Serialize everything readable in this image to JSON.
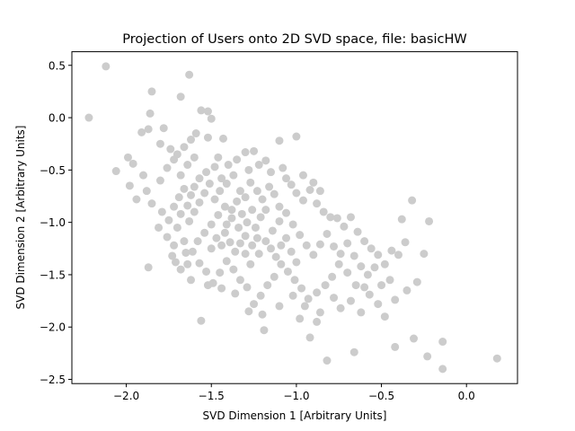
{
  "chart_data": {
    "type": "scatter",
    "title": "Projection of Users onto 2D SVD space, file: basicHW",
    "xlabel": "SVD Dimension 1 [Arbitrary Units]",
    "ylabel": "SVD Dimension 2 [Arbitrary Units]",
    "xlim": [
      -2.32,
      0.3
    ],
    "ylim": [
      -2.54,
      0.63
    ],
    "xticks": [
      -2.0,
      -1.5,
      -1.0,
      -0.5,
      0.0
    ],
    "xtick_labels": [
      "−2.0",
      "−1.5",
      "−1.0",
      "−0.5",
      "0.0"
    ],
    "yticks": [
      -2.5,
      -2.0,
      -1.5,
      -1.0,
      -0.5,
      0.0,
      0.5
    ],
    "ytick_labels": [
      "−2.5",
      "−2.0",
      "−1.5",
      "−1.0",
      "−0.5",
      "0.0",
      "0.5"
    ],
    "grid": false,
    "marker_color": "#cccccc",
    "series": [
      {
        "points": [
          [
            -2.22,
            0.0
          ],
          [
            -2.12,
            0.49
          ],
          [
            -1.63,
            0.41
          ],
          [
            -1.85,
            0.25
          ],
          [
            -1.68,
            0.2
          ],
          [
            -1.56,
            0.07
          ],
          [
            -1.52,
            0.06
          ],
          [
            -1.86,
            0.04
          ],
          [
            -1.5,
            -0.01
          ],
          [
            -1.87,
            -0.11
          ],
          [
            -1.91,
            -0.14
          ],
          [
            -1.78,
            -0.1
          ],
          [
            -1.59,
            -0.15
          ],
          [
            -1.52,
            -0.19
          ],
          [
            -1.43,
            -0.2
          ],
          [
            -1.62,
            -0.21
          ],
          [
            -1.0,
            -0.18
          ],
          [
            -1.1,
            -0.22
          ],
          [
            -1.25,
            -0.32
          ],
          [
            -1.3,
            -0.33
          ],
          [
            -1.18,
            -0.41
          ],
          [
            -1.96,
            -0.44
          ],
          [
            -1.99,
            -0.38
          ],
          [
            -2.06,
            -0.51
          ],
          [
            -1.9,
            -0.55
          ],
          [
            -1.98,
            -0.65
          ],
          [
            -1.88,
            -0.7
          ],
          [
            -1.94,
            -0.78
          ],
          [
            -1.85,
            -0.82
          ],
          [
            -1.79,
            -0.9
          ],
          [
            -1.75,
            -0.98
          ],
          [
            -1.81,
            -1.05
          ],
          [
            -1.76,
            -1.14
          ],
          [
            -1.72,
            -1.22
          ],
          [
            -1.73,
            -1.32
          ],
          [
            -1.87,
            -1.43
          ],
          [
            -1.62,
            -1.55
          ],
          [
            -1.56,
            -1.94
          ],
          [
            -1.71,
            -1.38
          ],
          [
            -1.65,
            -1.29
          ],
          [
            -1.66,
            -1.18
          ],
          [
            -1.7,
            -1.05
          ],
          [
            -1.68,
            -0.92
          ],
          [
            -1.64,
            -0.84
          ],
          [
            -1.62,
            -0.74
          ],
          [
            -1.6,
            -0.66
          ],
          [
            -1.57,
            -0.58
          ],
          [
            -1.53,
            -0.52
          ],
          [
            -1.48,
            -0.47
          ],
          [
            -1.44,
            -0.58
          ],
          [
            -1.41,
            -0.63
          ],
          [
            -1.37,
            -0.55
          ],
          [
            -1.33,
            -0.7
          ],
          [
            -1.3,
            -0.76
          ],
          [
            -1.27,
            -0.62
          ],
          [
            -1.23,
            -0.7
          ],
          [
            -1.2,
            -0.78
          ],
          [
            -1.16,
            -0.66
          ],
          [
            -1.13,
            -0.73
          ],
          [
            -1.1,
            -0.85
          ],
          [
            -1.06,
            -0.58
          ],
          [
            -1.03,
            -0.64
          ],
          [
            -1.0,
            -0.72
          ],
          [
            -0.96,
            -0.79
          ],
          [
            -0.92,
            -0.69
          ],
          [
            -0.88,
            -0.82
          ],
          [
            -0.84,
            -0.9
          ],
          [
            -0.8,
            -0.95
          ],
          [
            -0.76,
            -0.96
          ],
          [
            -0.72,
            -1.04
          ],
          [
            -0.68,
            -0.95
          ],
          [
            -0.64,
            -1.09
          ],
          [
            -0.6,
            -1.18
          ],
          [
            -0.56,
            -1.25
          ],
          [
            -0.52,
            -1.31
          ],
          [
            -0.48,
            -1.4
          ],
          [
            -0.44,
            -1.27
          ],
          [
            -0.4,
            -1.31
          ],
          [
            -0.36,
            -1.19
          ],
          [
            -0.32,
            -0.79
          ],
          [
            -0.38,
            -0.97
          ],
          [
            -0.22,
            -0.99
          ],
          [
            -0.25,
            -1.3
          ],
          [
            -0.29,
            -1.57
          ],
          [
            -0.35,
            -1.65
          ],
          [
            -0.42,
            -1.74
          ],
          [
            -0.45,
            -1.55
          ],
          [
            -0.48,
            -1.9
          ],
          [
            -0.42,
            -2.19
          ],
          [
            -0.31,
            -2.11
          ],
          [
            -0.14,
            -2.14
          ],
          [
            -0.23,
            -2.28
          ],
          [
            -0.14,
            -2.4
          ],
          [
            0.18,
            -2.3
          ],
          [
            -0.82,
            -2.32
          ],
          [
            -0.66,
            -2.24
          ],
          [
            -0.92,
            -2.1
          ],
          [
            -1.19,
            -2.03
          ],
          [
            -0.98,
            -1.92
          ],
          [
            -0.86,
            -1.86
          ],
          [
            -0.74,
            -1.82
          ],
          [
            -0.62,
            -1.86
          ],
          [
            -0.5,
            -1.6
          ],
          [
            -0.57,
            -1.69
          ],
          [
            -0.65,
            -1.6
          ],
          [
            -0.7,
            -1.48
          ],
          [
            -0.75,
            -1.4
          ],
          [
            -0.79,
            -1.52
          ],
          [
            -0.83,
            -1.6
          ],
          [
            -0.88,
            -1.67
          ],
          [
            -0.93,
            -1.73
          ],
          [
            -0.97,
            -1.63
          ],
          [
            -1.01,
            -1.55
          ],
          [
            -1.05,
            -1.47
          ],
          [
            -1.09,
            -1.4
          ],
          [
            -1.13,
            -1.52
          ],
          [
            -1.17,
            -1.6
          ],
          [
            -1.21,
            -1.7
          ],
          [
            -1.25,
            -1.78
          ],
          [
            -1.29,
            -1.62
          ],
          [
            -1.33,
            -1.55
          ],
          [
            -1.37,
            -1.45
          ],
          [
            -1.41,
            -1.37
          ],
          [
            -1.45,
            -1.48
          ],
          [
            -1.49,
            -1.58
          ],
          [
            -1.53,
            -1.47
          ],
          [
            -1.57,
            -1.39
          ],
          [
            -1.61,
            -1.28
          ],
          [
            -1.58,
            -1.18
          ],
          [
            -1.54,
            -1.1
          ],
          [
            -1.5,
            -1.02
          ],
          [
            -1.46,
            -0.93
          ],
          [
            -1.42,
            -0.85
          ],
          [
            -1.38,
            -0.96
          ],
          [
            -1.34,
            -1.05
          ],
          [
            -1.3,
            -1.13
          ],
          [
            -1.26,
            -1.22
          ],
          [
            -1.22,
            -1.3
          ],
          [
            -1.18,
            -1.18
          ],
          [
            -1.14,
            -1.08
          ],
          [
            -1.1,
            -0.99
          ],
          [
            -1.06,
            -0.91
          ],
          [
            -1.02,
            -1.02
          ],
          [
            -0.98,
            -1.12
          ],
          [
            -0.94,
            -1.22
          ],
          [
            -0.9,
            -1.31
          ],
          [
            -0.86,
            -1.21
          ],
          [
            -0.82,
            -1.11
          ],
          [
            -0.78,
            -1.23
          ],
          [
            -0.74,
            -1.3
          ],
          [
            -0.7,
            -1.2
          ],
          [
            -0.66,
            -1.32
          ],
          [
            -0.62,
            -1.42
          ],
          [
            -0.58,
            -1.5
          ],
          [
            -0.54,
            -1.43
          ],
          [
            -1.72,
            -0.85
          ],
          [
            -1.69,
            -0.76
          ],
          [
            -1.66,
            -0.68
          ],
          [
            -1.63,
            -0.99
          ],
          [
            -1.6,
            -0.9
          ],
          [
            -1.57,
            -0.81
          ],
          [
            -1.54,
            -0.72
          ],
          [
            -1.51,
            -0.63
          ],
          [
            -1.48,
            -0.78
          ],
          [
            -1.45,
            -0.7
          ],
          [
            -1.42,
            -1.1
          ],
          [
            -1.39,
            -1.19
          ],
          [
            -1.36,
            -1.28
          ],
          [
            -1.33,
            -1.2
          ],
          [
            -1.3,
            -1.3
          ],
          [
            -1.27,
            -1.4
          ],
          [
            -1.24,
            -1.05
          ],
          [
            -1.21,
            -0.95
          ],
          [
            -1.18,
            -0.88
          ],
          [
            -1.15,
            -1.25
          ],
          [
            -1.12,
            -1.33
          ],
          [
            -1.09,
            -1.22
          ],
          [
            -1.06,
            -1.15
          ],
          [
            -1.03,
            -1.28
          ],
          [
            -1.0,
            -1.38
          ],
          [
            -1.5,
            -1.25
          ],
          [
            -1.47,
            -1.15
          ],
          [
            -1.44,
            -1.22
          ],
          [
            -1.41,
            -1.02
          ],
          [
            -1.38,
            -0.88
          ],
          [
            -1.35,
            -0.8
          ],
          [
            -1.32,
            -0.92
          ],
          [
            -1.29,
            -1.0
          ],
          [
            -1.26,
            -0.88
          ],
          [
            -1.23,
            -1.15
          ],
          [
            -1.68,
            -1.45
          ],
          [
            -1.64,
            -1.4
          ],
          [
            -1.52,
            -1.6
          ],
          [
            -1.44,
            -1.63
          ],
          [
            -1.36,
            -1.68
          ],
          [
            -1.28,
            -1.85
          ],
          [
            -1.2,
            -1.88
          ],
          [
            -1.1,
            -1.8
          ],
          [
            -1.02,
            -1.7
          ],
          [
            -0.95,
            -1.8
          ],
          [
            -0.88,
            -1.95
          ],
          [
            -0.78,
            -1.72
          ],
          [
            -0.68,
            -1.75
          ],
          [
            -0.6,
            -1.62
          ],
          [
            -0.52,
            -1.78
          ],
          [
            -1.8,
            -0.6
          ],
          [
            -1.76,
            -0.48
          ],
          [
            -1.72,
            -0.4
          ],
          [
            -1.68,
            -0.55
          ],
          [
            -1.64,
            -0.45
          ],
          [
            -1.8,
            -0.25
          ],
          [
            -1.74,
            -0.3
          ],
          [
            -1.7,
            -0.35
          ],
          [
            -1.66,
            -0.28
          ],
          [
            -1.6,
            -0.38
          ],
          [
            -1.46,
            -0.38
          ],
          [
            -1.4,
            -0.45
          ],
          [
            -1.35,
            -0.4
          ],
          [
            -1.28,
            -0.5
          ],
          [
            -1.22,
            -0.45
          ],
          [
            -1.15,
            -0.52
          ],
          [
            -1.08,
            -0.48
          ],
          [
            -0.96,
            -0.55
          ],
          [
            -0.9,
            -0.62
          ],
          [
            -0.86,
            -0.7
          ]
        ]
      }
    ]
  }
}
